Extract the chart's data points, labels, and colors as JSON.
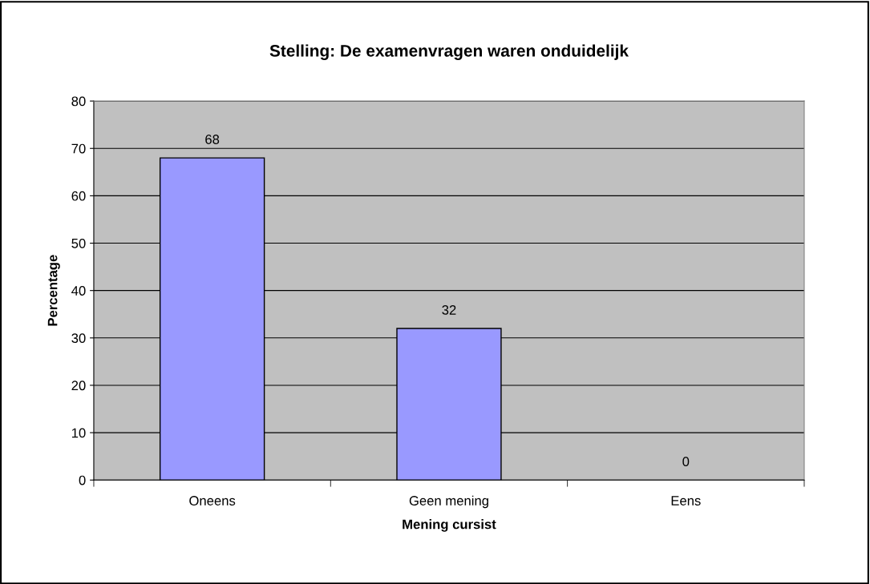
{
  "chart_data": {
    "type": "bar",
    "title": "Stelling: De examenvragen waren onduidelijk",
    "xlabel": "Mening cursist",
    "ylabel": "Percentage",
    "categories": [
      "Oneens",
      "Geen mening",
      "Eens"
    ],
    "values": [
      68,
      32,
      0
    ],
    "color": "#9999ff",
    "ylim": [
      0,
      80
    ],
    "yticks": [
      0,
      10,
      20,
      30,
      40,
      50,
      60,
      70,
      80
    ],
    "grid": "y",
    "data_labels": true
  }
}
